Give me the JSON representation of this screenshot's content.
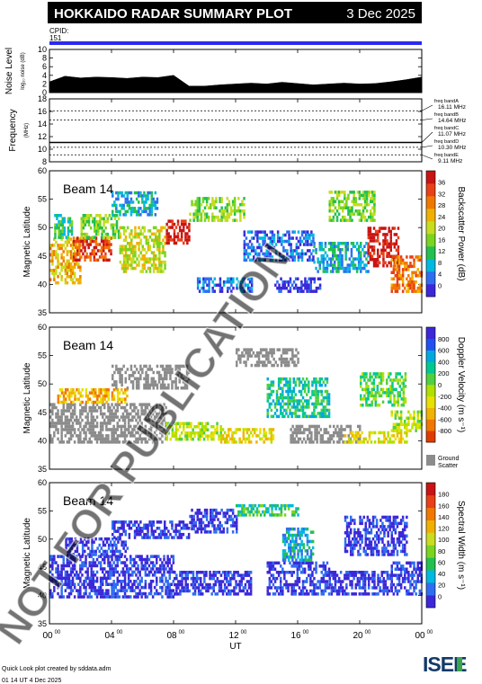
{
  "header": {
    "title": "HOKKAIDO RADAR SUMMARY PLOT",
    "date": "3 Dec 2025",
    "cpid_label": "CPID:",
    "cpid_value": "151"
  },
  "watermark": "NOT FOR PUBLICATION",
  "footer": {
    "credit": "Quick Look plot created by sddata.adm",
    "timestamp": "01 14 UT  4 Dec 2025",
    "logo": "ISEE"
  },
  "colors": {
    "cpid_bar": "#2a2af0",
    "ground_scatter": "#8c8c8c"
  },
  "chart_data": [
    {
      "type": "area",
      "ylabel": "Noise Level",
      "ylabel_sub": "log₁₀ noise (dB)",
      "ylim": [
        0,
        10
      ],
      "yticks": [
        0,
        2,
        4,
        6,
        8,
        10
      ],
      "x": [
        0,
        1,
        2,
        3,
        4,
        5,
        6,
        7,
        8,
        9,
        10,
        11,
        12,
        13,
        14,
        15,
        16,
        17,
        18,
        19,
        20,
        21,
        22,
        23,
        24
      ],
      "values": [
        2.5,
        3.8,
        3.4,
        3.6,
        3.5,
        3.3,
        3.6,
        3.5,
        4.0,
        1.5,
        1.5,
        1.8,
        2.0,
        2.2,
        2.0,
        2.4,
        2.1,
        1.8,
        2.0,
        2.2,
        2.0,
        2.1,
        2.5,
        3.0,
        3.6
      ]
    },
    {
      "type": "line",
      "ylabel": "Frequency",
      "ylabel_sub": "(MHz)",
      "ylim": [
        8,
        18
      ],
      "yticks": [
        8,
        10,
        12,
        14,
        16,
        18
      ],
      "bands": [
        {
          "label": "freq bandA",
          "value": 16.11,
          "text": "16.11 MHz"
        },
        {
          "label": "freq bandB",
          "value": 14.64,
          "text": "14.64 MHz"
        },
        {
          "label": "freq bandC",
          "value": 11.07,
          "text": "11.07 MHz"
        },
        {
          "label": "freq bandD",
          "value": 10.3,
          "text": "10.30 MHz"
        },
        {
          "label": "freq bandE",
          "value": 9.11,
          "text": "9.11 MHz"
        }
      ],
      "operating_frequency": 11.07
    },
    {
      "type": "heatmap",
      "beam": "Beam 14",
      "ylabel": "Magnetic Latitude",
      "ylim": [
        35,
        60
      ],
      "yticks": [
        35,
        40,
        45,
        50,
        55,
        60
      ],
      "colorbar": {
        "label": "Backscatter Power (dB)",
        "ticks": [
          "0",
          "4",
          "8",
          "12",
          "16",
          "20",
          "24",
          "28",
          "32",
          "36"
        ],
        "colors": [
          "#3c28d8",
          "#2f6ef0",
          "#00b8e0",
          "#22c050",
          "#7ad420",
          "#c8dc20",
          "#f0b000",
          "#f07800",
          "#e84018",
          "#c81414"
        ],
        "ground_scatter": false
      },
      "patches": [
        {
          "t": [
            0.0,
            2.0
          ],
          "lat": [
            40.0,
            48.0
          ],
          "level": 6
        },
        {
          "t": [
            0.3,
            1.5
          ],
          "lat": [
            48.0,
            52.0
          ],
          "level": 3
        },
        {
          "t": [
            1.5,
            4.0
          ],
          "lat": [
            44.0,
            48.0
          ],
          "level": 8
        },
        {
          "t": [
            2.0,
            4.5
          ],
          "lat": [
            48.0,
            52.0
          ],
          "level": 4
        },
        {
          "t": [
            4.5,
            7.5
          ],
          "lat": [
            42.0,
            50.0
          ],
          "level": 5
        },
        {
          "t": [
            4.0,
            7.0
          ],
          "lat": [
            52.0,
            56.0
          ],
          "level": 2
        },
        {
          "t": [
            7.5,
            9.0
          ],
          "lat": [
            47.0,
            51.0
          ],
          "level": 9
        },
        {
          "t": [
            9.0,
            12.5
          ],
          "lat": [
            51.0,
            55.0
          ],
          "level": 4
        },
        {
          "t": [
            9.5,
            13.0
          ],
          "lat": [
            38.5,
            41.0
          ],
          "level": 1
        },
        {
          "t": [
            12.5,
            17.0
          ],
          "lat": [
            44.0,
            49.0
          ],
          "level": 1
        },
        {
          "t": [
            14.5,
            17.5
          ],
          "lat": [
            38.5,
            41.0
          ],
          "level": 0
        },
        {
          "t": [
            17.0,
            20.5
          ],
          "lat": [
            42.0,
            47.0
          ],
          "level": 2
        },
        {
          "t": [
            18.0,
            21.0
          ],
          "lat": [
            51.0,
            56.0
          ],
          "level": 4
        },
        {
          "t": [
            20.5,
            22.5
          ],
          "lat": [
            43.0,
            50.0
          ],
          "level": 9
        },
        {
          "t": [
            22.0,
            24.0
          ],
          "lat": [
            38.5,
            45.0
          ],
          "level": 7
        }
      ]
    },
    {
      "type": "heatmap",
      "beam": "Beam 14",
      "ylabel": "Magnetic Latitude",
      "ylim": [
        35,
        60
      ],
      "yticks": [
        35,
        40,
        45,
        50,
        55,
        60
      ],
      "colorbar": {
        "label": "Doppler Velocity (m s⁻¹)",
        "ticks": [
          "-800",
          "-600",
          "-400",
          "-200",
          "0",
          "200",
          "400",
          "600",
          "800"
        ],
        "colors": [
          "#e03c00",
          "#f07800",
          "#f0b400",
          "#e8e000",
          "#b0e000",
          "#50d040",
          "#00c890",
          "#00a8e0",
          "#2050f0",
          "#3c28d8"
        ],
        "ground_scatter": true,
        "ground_scatter_label": "Ground\nScatter"
      },
      "patches": [
        {
          "t": [
            0.0,
            7.5
          ],
          "lat": [
            39.5,
            46.5
          ],
          "level": -1
        },
        {
          "t": [
            0.5,
            5.0
          ],
          "lat": [
            46.5,
            49.0
          ],
          "level": 2
        },
        {
          "t": [
            4.0,
            9.0
          ],
          "lat": [
            49.0,
            53.0
          ],
          "level": -1
        },
        {
          "t": [
            7.5,
            11.0
          ],
          "lat": [
            40.0,
            43.0
          ],
          "level": 4
        },
        {
          "t": [
            11.0,
            14.5
          ],
          "lat": [
            39.5,
            42.0
          ],
          "level": 3
        },
        {
          "t": [
            12.0,
            16.0
          ],
          "lat": [
            53.0,
            56.0
          ],
          "level": -1
        },
        {
          "t": [
            14.0,
            18.0
          ],
          "lat": [
            44.0,
            51.0
          ],
          "level": 6
        },
        {
          "t": [
            15.5,
            20.0
          ],
          "lat": [
            39.5,
            42.5
          ],
          "level": -1
        },
        {
          "t": [
            19.0,
            23.0
          ],
          "lat": [
            39.5,
            41.5
          ],
          "level": 3
        },
        {
          "t": [
            20.0,
            23.0
          ],
          "lat": [
            46.0,
            52.0
          ],
          "level": 5
        },
        {
          "t": [
            22.0,
            24.0
          ],
          "lat": [
            41.5,
            45.0
          ],
          "level": 4
        }
      ]
    },
    {
      "type": "heatmap",
      "beam": "Beam 14",
      "ylabel": "Magnetic Latitude",
      "ylim": [
        35,
        60
      ],
      "yticks": [
        35,
        40,
        45,
        50,
        55,
        60
      ],
      "colorbar": {
        "label": "Spectral Width (m s⁻¹)",
        "ticks": [
          "0",
          "20",
          "40",
          "60",
          "80",
          "100",
          "120",
          "140",
          "160",
          "180"
        ],
        "colors": [
          "#3c28d8",
          "#2f6ef0",
          "#00b8e0",
          "#22c050",
          "#7ad420",
          "#c8dc20",
          "#f0b000",
          "#f07800",
          "#e84018",
          "#c81414"
        ],
        "ground_scatter": false
      },
      "patches": [
        {
          "t": [
            0.0,
            8.0
          ],
          "lat": [
            39.5,
            47.0
          ],
          "level": 0
        },
        {
          "t": [
            1.0,
            5.0
          ],
          "lat": [
            47.0,
            50.0
          ],
          "level": 0
        },
        {
          "t": [
            4.0,
            9.0
          ],
          "lat": [
            50.0,
            53.0
          ],
          "level": 0
        },
        {
          "t": [
            8.0,
            13.0
          ],
          "lat": [
            40.0,
            44.0
          ],
          "level": 0
        },
        {
          "t": [
            9.0,
            12.0
          ],
          "lat": [
            51.0,
            55.0
          ],
          "level": 0
        },
        {
          "t": [
            12.0,
            16.0
          ],
          "lat": [
            54.0,
            56.0
          ],
          "level": 3
        },
        {
          "t": [
            14.0,
            18.0
          ],
          "lat": [
            40.0,
            46.0
          ],
          "level": 0
        },
        {
          "t": [
            15.0,
            17.0
          ],
          "lat": [
            46.0,
            52.0
          ],
          "level": 2
        },
        {
          "t": [
            18.0,
            22.0
          ],
          "lat": [
            40.0,
            44.0
          ],
          "level": 0
        },
        {
          "t": [
            19.0,
            23.0
          ],
          "lat": [
            47.0,
            54.0
          ],
          "level": 0
        },
        {
          "t": [
            22.0,
            24.0
          ],
          "lat": [
            40.0,
            46.0
          ],
          "level": 0
        }
      ]
    }
  ],
  "time_axis": {
    "label": "UT",
    "ticks": [
      {
        "hour": 0,
        "label": "00",
        "sup": "00"
      },
      {
        "hour": 4,
        "label": "04",
        "sup": "00"
      },
      {
        "hour": 8,
        "label": "08",
        "sup": "00"
      },
      {
        "hour": 12,
        "label": "12",
        "sup": "00"
      },
      {
        "hour": 16,
        "label": "16",
        "sup": "00"
      },
      {
        "hour": 20,
        "label": "20",
        "sup": "00"
      },
      {
        "hour": 24,
        "label": "00",
        "sup": "00"
      }
    ]
  }
}
